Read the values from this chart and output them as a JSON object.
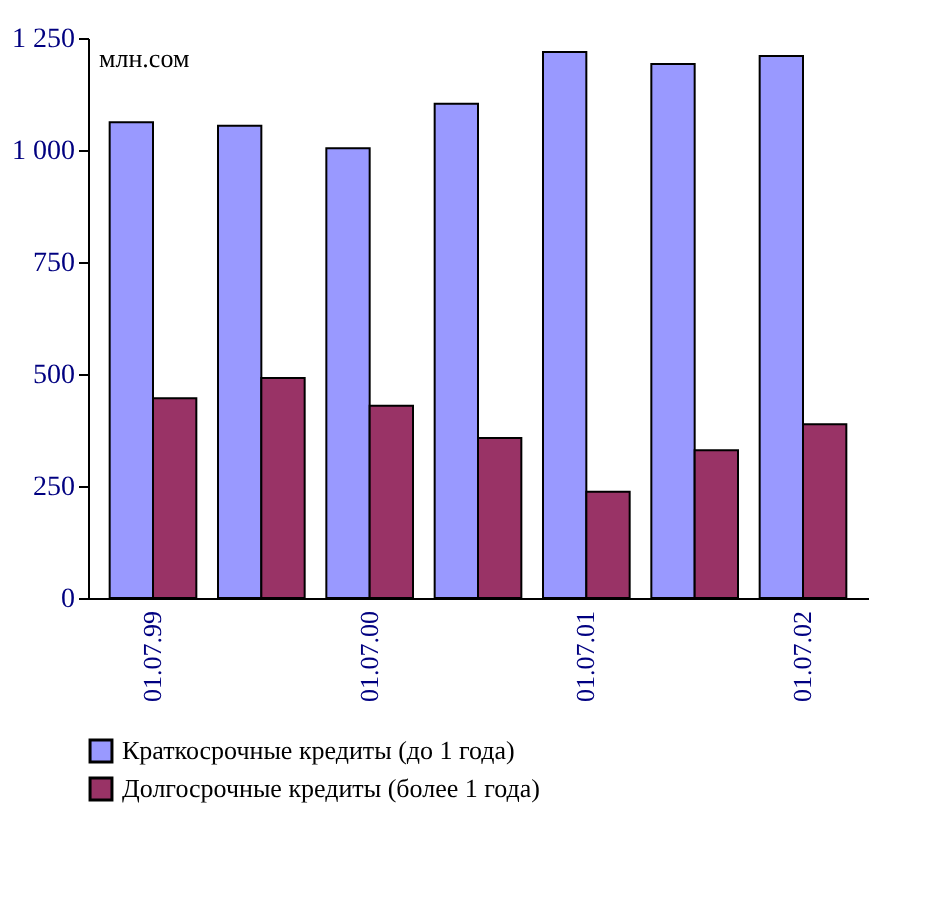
{
  "chart_data": {
    "type": "bar",
    "ylabel": "млн.сом",
    "categories": [
      "01.07.99",
      null,
      "01.07.00",
      null,
      "01.07.01",
      null,
      "01.07.02"
    ],
    "series": [
      {
        "name": "Краткосрочные кредиты (до 1 года)",
        "color": "#9999ff",
        "values": [
          1062,
          1054,
          1004,
          1103,
          1219,
          1192,
          1210
        ]
      },
      {
        "name": "Долгосрочные кредиты (более 1 года)",
        "color": "#993366",
        "values": [
          446,
          491,
          429,
          357,
          237,
          330,
          388
        ]
      }
    ],
    "ylim": [
      0,
      1250
    ],
    "yticks": [
      0,
      250,
      500,
      750,
      {
        "value": 1000,
        "label": "1 000"
      },
      {
        "value": 1250,
        "label": "1 250"
      }
    ],
    "grid": false,
    "legend": "bottom"
  }
}
